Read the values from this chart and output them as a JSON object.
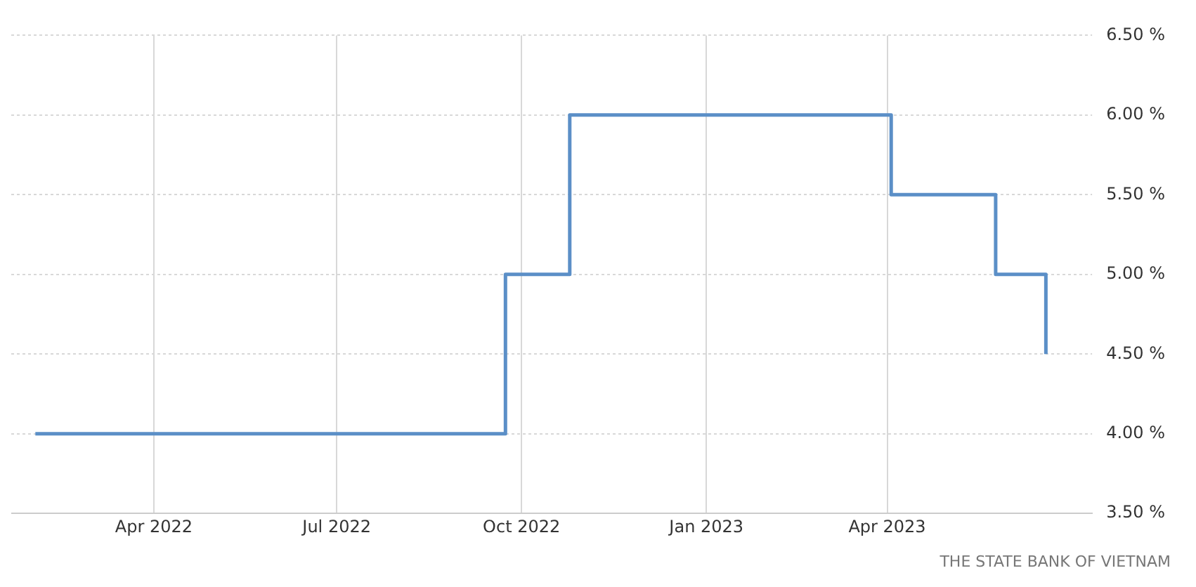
{
  "chart_data": {
    "type": "step",
    "x": [
      "2022-02-01",
      "2022-09-23",
      "2022-10-25",
      "2023-04-03",
      "2023-05-25",
      "2023-06-19"
    ],
    "values": [
      4.0,
      5.0,
      6.0,
      5.5,
      5.0,
      4.5
    ],
    "color": "#5b8fc7",
    "xlim": [
      "2022-01-20",
      "2023-07-12"
    ],
    "xticks": [
      {
        "value": "2022-04-01",
        "label": "Apr 2022"
      },
      {
        "value": "2022-07-01",
        "label": "Jul 2022"
      },
      {
        "value": "2022-10-01",
        "label": "Oct 2022"
      },
      {
        "value": "2023-01-01",
        "label": "Jan 2023"
      },
      {
        "value": "2023-04-01",
        "label": "Apr 2023"
      }
    ],
    "ylim": [
      3.5,
      6.5
    ],
    "yticks": [
      {
        "value": 3.5,
        "label": "3.50 %"
      },
      {
        "value": 4.0,
        "label": "4.00 %"
      },
      {
        "value": 4.5,
        "label": "4.50 %"
      },
      {
        "value": 5.0,
        "label": "5.00 %"
      },
      {
        "value": 5.5,
        "label": "5.50 %"
      },
      {
        "value": 6.0,
        "label": "6.00 %"
      },
      {
        "value": 6.5,
        "label": "6.50 %"
      }
    ],
    "grid": true,
    "annotations": [
      "THE STATE BANK OF VIETNAM"
    ]
  }
}
